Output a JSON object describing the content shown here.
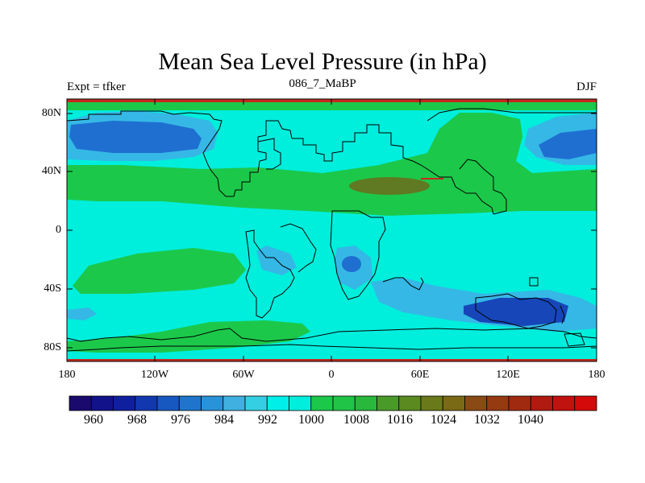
{
  "title": "Mean Sea Level Pressure (in hPa)",
  "left_label": "Expt = tfker",
  "center_label": "086_7_MaBP",
  "right_label": "DJF",
  "lat_labels": [
    "80N",
    "40N",
    "0",
    "40S",
    "80S"
  ],
  "lon_labels": [
    "180",
    "120W",
    "60W",
    "0",
    "60E",
    "120E",
    "180"
  ],
  "colorbar": {
    "labels": [
      "960",
      "968",
      "976",
      "984",
      "992",
      "1000",
      "1008",
      "1016",
      "1024",
      "1032",
      "1040"
    ],
    "colors": [
      "#1a0a6e",
      "#12128a",
      "#0f1f9e",
      "#1238b0",
      "#1758c0",
      "#1f75cc",
      "#2a92d8",
      "#3fb0e0",
      "#35cfe3",
      "#00efe8",
      "#00eedc",
      "#1cc84a",
      "#20c446",
      "#28b83c",
      "#4a9a2a",
      "#5a8a20",
      "#6a7a1a",
      "#7a6a16",
      "#8a4a14",
      "#963a12",
      "#a02a10",
      "#b01a10",
      "#c0120e",
      "#d40a0a"
    ]
  },
  "map_colors": {
    "background": "#00eedc",
    "green": "#1cc84a",
    "light_blue": "#35b8e6",
    "blue": "#1f6fd1",
    "dark_blue": "#1646b8",
    "brown": "#5f7a22",
    "red_edge": "#c8281e"
  }
}
